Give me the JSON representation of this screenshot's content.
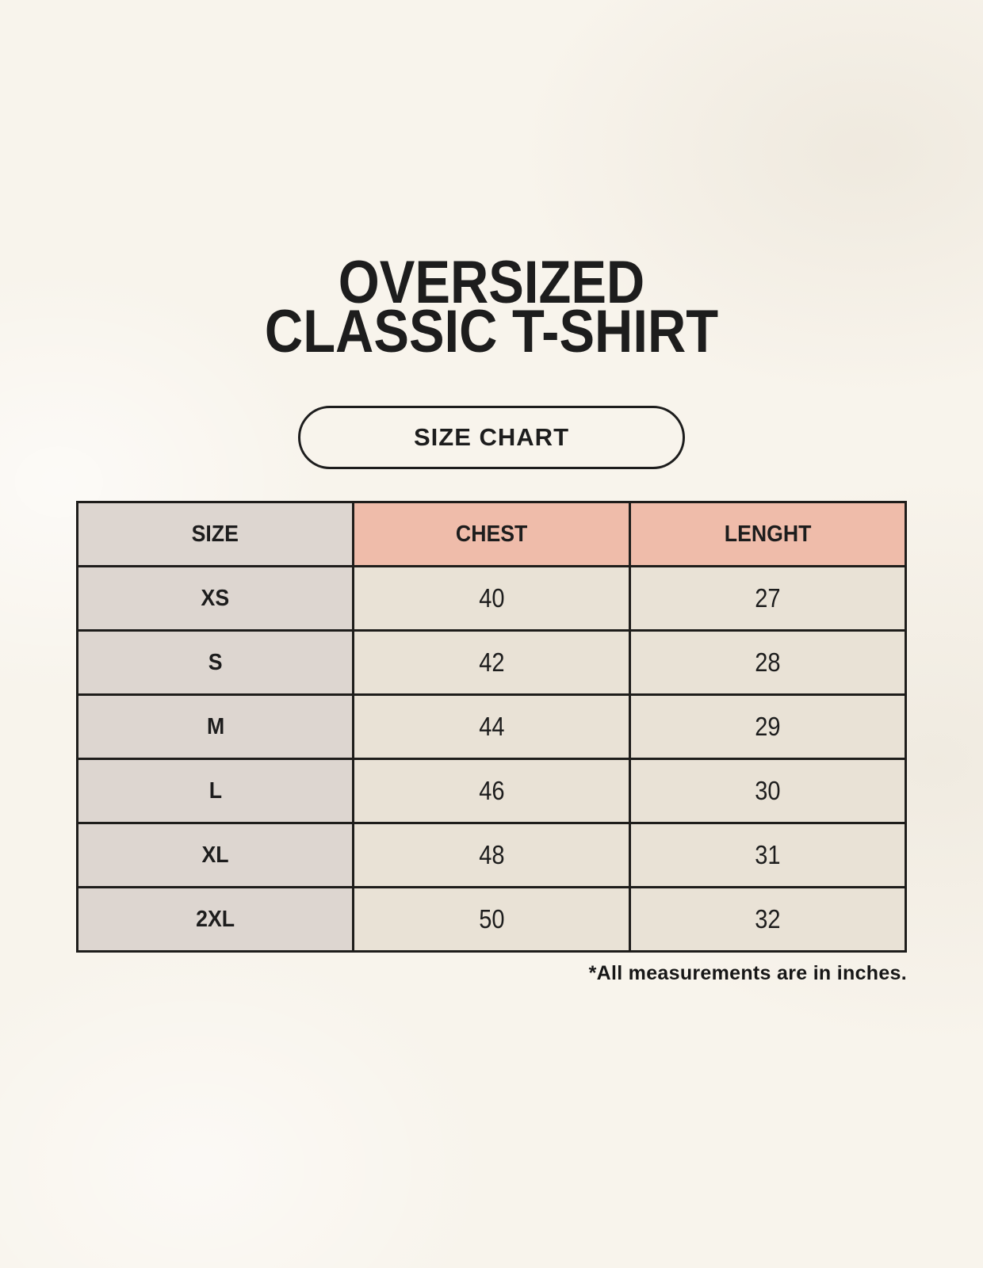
{
  "page": {
    "title_line1": "OVERSIZED",
    "title_line2": "CLASSIC T-SHIRT",
    "button_label": "SIZE CHART",
    "footnote": "*All measurements are in inches."
  },
  "colors": {
    "page_background": "#f8f4ec",
    "size_column_background": "#ddd6d0",
    "accent_header_background": "#efbcaa",
    "data_cell_background": "#e9e2d6",
    "table_border": "#1e1d1b",
    "text": "#1d1d1d"
  },
  "chart_data": {
    "type": "table",
    "title": "OVERSIZED CLASSIC T-SHIRT",
    "subtitle": "SIZE CHART",
    "columns": [
      "SIZE",
      "CHEST",
      "LENGHT"
    ],
    "rows": [
      {
        "size": "XS",
        "chest_in": 40,
        "length_in": 27
      },
      {
        "size": "S",
        "chest_in": 42,
        "length_in": 28
      },
      {
        "size": "M",
        "chest_in": 44,
        "length_in": 29
      },
      {
        "size": "L",
        "chest_in": 46,
        "length_in": 30
      },
      {
        "size": "XL",
        "chest_in": 48,
        "length_in": 31
      },
      {
        "size": "2XL",
        "chest_in": 50,
        "length_in": 32
      }
    ],
    "units": "inches",
    "units_note": "*All measurements are in inches."
  }
}
